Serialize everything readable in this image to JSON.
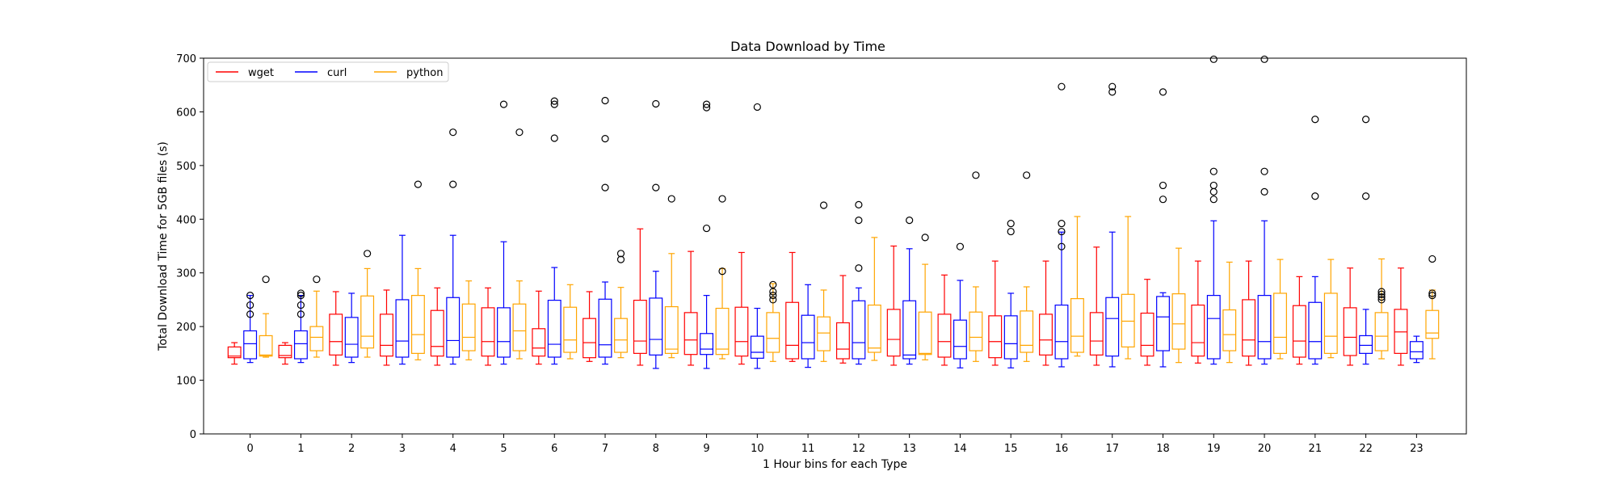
{
  "chart_data": {
    "type": "box",
    "title": "Data Download by Time",
    "xlabel": "1 Hour bins for each Type",
    "ylabel": "Total Download Time for 5GB files (s)",
    "ylim": [
      0,
      700
    ],
    "yticks": [
      0,
      100,
      200,
      300,
      400,
      500,
      600,
      700
    ],
    "categories": [
      "0",
      "1",
      "2",
      "3",
      "4",
      "5",
      "6",
      "7",
      "8",
      "9",
      "10",
      "11",
      "12",
      "13",
      "14",
      "15",
      "16",
      "17",
      "18",
      "19",
      "20",
      "21",
      "22",
      "23"
    ],
    "legend_position": "top-left",
    "series": [
      {
        "name": "wget",
        "color": "#ff0000",
        "boxes": [
          {
            "whislo": 130,
            "q1": 142,
            "med": 145,
            "q3": 162,
            "whishi": 170,
            "fliers": []
          },
          {
            "whislo": 130,
            "q1": 142,
            "med": 146,
            "q3": 165,
            "whishi": 170,
            "fliers": []
          },
          {
            "whislo": 128,
            "q1": 147,
            "med": 172,
            "q3": 223,
            "whishi": 265,
            "fliers": []
          },
          {
            "whislo": 128,
            "q1": 145,
            "med": 165,
            "q3": 223,
            "whishi": 268,
            "fliers": []
          },
          {
            "whislo": 128,
            "q1": 145,
            "med": 163,
            "q3": 230,
            "whishi": 272,
            "fliers": []
          },
          {
            "whislo": 128,
            "q1": 145,
            "med": 172,
            "q3": 235,
            "whishi": 272,
            "fliers": []
          },
          {
            "whislo": 130,
            "q1": 145,
            "med": 160,
            "q3": 196,
            "whishi": 266,
            "fliers": []
          },
          {
            "whislo": 135,
            "q1": 142,
            "med": 170,
            "q3": 215,
            "whishi": 265,
            "fliers": []
          },
          {
            "whislo": 128,
            "q1": 150,
            "med": 173,
            "q3": 249,
            "whishi": 382,
            "fliers": []
          },
          {
            "whislo": 128,
            "q1": 148,
            "med": 175,
            "q3": 226,
            "whishi": 340,
            "fliers": []
          },
          {
            "whislo": 130,
            "q1": 145,
            "med": 172,
            "q3": 236,
            "whishi": 338,
            "fliers": []
          },
          {
            "whislo": 135,
            "q1": 140,
            "med": 165,
            "q3": 245,
            "whishi": 338,
            "fliers": []
          },
          {
            "whislo": 132,
            "q1": 140,
            "med": 158,
            "q3": 207,
            "whishi": 295,
            "fliers": []
          },
          {
            "whislo": 128,
            "q1": 145,
            "med": 176,
            "q3": 232,
            "whishi": 350,
            "fliers": []
          },
          {
            "whislo": 128,
            "q1": 143,
            "med": 172,
            "q3": 223,
            "whishi": 296,
            "fliers": []
          },
          {
            "whislo": 128,
            "q1": 142,
            "med": 172,
            "q3": 220,
            "whishi": 322,
            "fliers": []
          },
          {
            "whislo": 128,
            "q1": 147,
            "med": 175,
            "q3": 223,
            "whishi": 322,
            "fliers": []
          },
          {
            "whislo": 128,
            "q1": 147,
            "med": 173,
            "q3": 226,
            "whishi": 348,
            "fliers": []
          },
          {
            "whislo": 128,
            "q1": 145,
            "med": 165,
            "q3": 225,
            "whishi": 288,
            "fliers": []
          },
          {
            "whislo": 132,
            "q1": 145,
            "med": 170,
            "q3": 240,
            "whishi": 322,
            "fliers": []
          },
          {
            "whislo": 128,
            "q1": 145,
            "med": 175,
            "q3": 250,
            "whishi": 322,
            "fliers": []
          },
          {
            "whislo": 130,
            "q1": 143,
            "med": 173,
            "q3": 239,
            "whishi": 293,
            "fliers": []
          },
          {
            "whislo": 128,
            "q1": 146,
            "med": 180,
            "q3": 235,
            "whishi": 309,
            "fliers": []
          },
          {
            "whislo": 128,
            "q1": 150,
            "med": 190,
            "q3": 232,
            "whishi": 309,
            "fliers": []
          }
        ]
      },
      {
        "name": "curl",
        "color": "#0000ff",
        "boxes": [
          {
            "whislo": 133,
            "q1": 140,
            "med": 168,
            "q3": 192,
            "whishi": 258,
            "fliers": [
              223,
              240,
              258
            ]
          },
          {
            "whislo": 133,
            "q1": 140,
            "med": 168,
            "q3": 192,
            "whishi": 258,
            "fliers": [
              223,
              240,
              258,
              262
            ]
          },
          {
            "whislo": 133,
            "q1": 143,
            "med": 167,
            "q3": 217,
            "whishi": 262,
            "fliers": []
          },
          {
            "whislo": 130,
            "q1": 143,
            "med": 173,
            "q3": 250,
            "whishi": 370,
            "fliers": []
          },
          {
            "whislo": 130,
            "q1": 143,
            "med": 174,
            "q3": 254,
            "whishi": 370,
            "fliers": [
              465,
              562
            ]
          },
          {
            "whislo": 130,
            "q1": 143,
            "med": 172,
            "q3": 235,
            "whishi": 358,
            "fliers": [
              614
            ]
          },
          {
            "whislo": 130,
            "q1": 143,
            "med": 167,
            "q3": 249,
            "whishi": 310,
            "fliers": [
              551,
              614,
              620
            ]
          },
          {
            "whislo": 130,
            "q1": 143,
            "med": 166,
            "q3": 251,
            "whishi": 283,
            "fliers": [
              459,
              550,
              621
            ]
          },
          {
            "whislo": 122,
            "q1": 147,
            "med": 176,
            "q3": 253,
            "whishi": 303,
            "fliers": [
              459,
              615
            ]
          },
          {
            "whislo": 122,
            "q1": 148,
            "med": 158,
            "q3": 187,
            "whishi": 258,
            "fliers": [
              383,
              608,
              614
            ]
          },
          {
            "whislo": 122,
            "q1": 141,
            "med": 152,
            "q3": 182,
            "whishi": 234,
            "fliers": [
              609
            ]
          },
          {
            "whislo": 124,
            "q1": 140,
            "med": 170,
            "q3": 221,
            "whishi": 278,
            "fliers": []
          },
          {
            "whislo": 130,
            "q1": 140,
            "med": 170,
            "q3": 248,
            "whishi": 272,
            "fliers": [
              309,
              398,
              427
            ]
          },
          {
            "whislo": 130,
            "q1": 140,
            "med": 147,
            "q3": 248,
            "whishi": 345,
            "fliers": [
              398
            ]
          },
          {
            "whislo": 123,
            "q1": 140,
            "med": 163,
            "q3": 212,
            "whishi": 286,
            "fliers": [
              349
            ]
          },
          {
            "whislo": 123,
            "q1": 140,
            "med": 168,
            "q3": 220,
            "whishi": 262,
            "fliers": [
              377,
              392
            ]
          },
          {
            "whislo": 125,
            "q1": 140,
            "med": 172,
            "q3": 240,
            "whishi": 376,
            "fliers": [
              349,
              377,
              392,
              647
            ]
          },
          {
            "whislo": 125,
            "q1": 145,
            "med": 215,
            "q3": 254,
            "whishi": 376,
            "fliers": [
              637,
              647
            ]
          },
          {
            "whislo": 125,
            "q1": 155,
            "med": 218,
            "q3": 256,
            "whishi": 263,
            "fliers": [
              437,
              463,
              637
            ]
          },
          {
            "whislo": 130,
            "q1": 140,
            "med": 215,
            "q3": 258,
            "whishi": 397,
            "fliers": [
              437,
              451,
              463,
              489,
              698
            ]
          },
          {
            "whislo": 130,
            "q1": 140,
            "med": 172,
            "q3": 258,
            "whishi": 397,
            "fliers": [
              451,
              489,
              698
            ]
          },
          {
            "whislo": 130,
            "q1": 140,
            "med": 172,
            "q3": 245,
            "whishi": 293,
            "fliers": [
              443,
              586
            ]
          },
          {
            "whislo": 130,
            "q1": 150,
            "med": 165,
            "q3": 183,
            "whishi": 232,
            "fliers": [
              443,
              586
            ]
          },
          {
            "whislo": 133,
            "q1": 140,
            "med": 153,
            "q3": 172,
            "whishi": 182,
            "fliers": []
          }
        ]
      },
      {
        "name": "python",
        "color": "#ffa500",
        "boxes": [
          {
            "whislo": 143,
            "q1": 145,
            "med": 147,
            "q3": 183,
            "whishi": 224,
            "fliers": [
              288
            ]
          },
          {
            "whislo": 143,
            "q1": 155,
            "med": 180,
            "q3": 200,
            "whishi": 266,
            "fliers": [
              288
            ]
          },
          {
            "whislo": 143,
            "q1": 160,
            "med": 182,
            "q3": 257,
            "whishi": 308,
            "fliers": [
              336
            ]
          },
          {
            "whislo": 138,
            "q1": 150,
            "med": 185,
            "q3": 258,
            "whishi": 308,
            "fliers": [
              465
            ]
          },
          {
            "whislo": 138,
            "q1": 155,
            "med": 180,
            "q3": 242,
            "whishi": 285,
            "fliers": []
          },
          {
            "whislo": 140,
            "q1": 155,
            "med": 192,
            "q3": 242,
            "whishi": 285,
            "fliers": [
              562
            ]
          },
          {
            "whislo": 140,
            "q1": 152,
            "med": 175,
            "q3": 236,
            "whishi": 278,
            "fliers": []
          },
          {
            "whislo": 142,
            "q1": 152,
            "med": 175,
            "q3": 215,
            "whishi": 273,
            "fliers": [
              325,
              336
            ]
          },
          {
            "whislo": 142,
            "q1": 150,
            "med": 158,
            "q3": 237,
            "whishi": 336,
            "fliers": [
              438
            ]
          },
          {
            "whislo": 140,
            "q1": 148,
            "med": 158,
            "q3": 234,
            "whishi": 308,
            "fliers": [
              303,
              438
            ]
          },
          {
            "whislo": 135,
            "q1": 152,
            "med": 178,
            "q3": 226,
            "whishi": 280,
            "fliers": [
              250,
              258,
              265,
              278
            ]
          },
          {
            "whislo": 135,
            "q1": 155,
            "med": 188,
            "q3": 218,
            "whishi": 268,
            "fliers": [
              426
            ]
          },
          {
            "whislo": 137,
            "q1": 152,
            "med": 160,
            "q3": 240,
            "whishi": 366,
            "fliers": []
          },
          {
            "whislo": 138,
            "q1": 148,
            "med": 150,
            "q3": 227,
            "whishi": 316,
            "fliers": [
              366
            ]
          },
          {
            "whislo": 135,
            "q1": 155,
            "med": 180,
            "q3": 227,
            "whishi": 274,
            "fliers": [
              482
            ]
          },
          {
            "whislo": 135,
            "q1": 152,
            "med": 165,
            "q3": 229,
            "whishi": 274,
            "fliers": [
              482
            ]
          },
          {
            "whislo": 145,
            "q1": 152,
            "med": 182,
            "q3": 252,
            "whishi": 405,
            "fliers": []
          },
          {
            "whislo": 140,
            "q1": 162,
            "med": 210,
            "q3": 260,
            "whishi": 405,
            "fliers": []
          },
          {
            "whislo": 133,
            "q1": 158,
            "med": 205,
            "q3": 261,
            "whishi": 346,
            "fliers": []
          },
          {
            "whislo": 133,
            "q1": 155,
            "med": 185,
            "q3": 231,
            "whishi": 320,
            "fliers": []
          },
          {
            "whislo": 140,
            "q1": 150,
            "med": 180,
            "q3": 262,
            "whishi": 325,
            "fliers": []
          },
          {
            "whislo": 142,
            "q1": 150,
            "med": 182,
            "q3": 262,
            "whishi": 325,
            "fliers": []
          },
          {
            "whislo": 140,
            "q1": 155,
            "med": 182,
            "q3": 226,
            "whishi": 326,
            "fliers": [
              250,
              255,
              260,
              265
            ]
          },
          {
            "whislo": 140,
            "q1": 178,
            "med": 188,
            "q3": 230,
            "whishi": 268,
            "fliers": [
              258,
              262,
              326
            ]
          }
        ]
      }
    ]
  }
}
